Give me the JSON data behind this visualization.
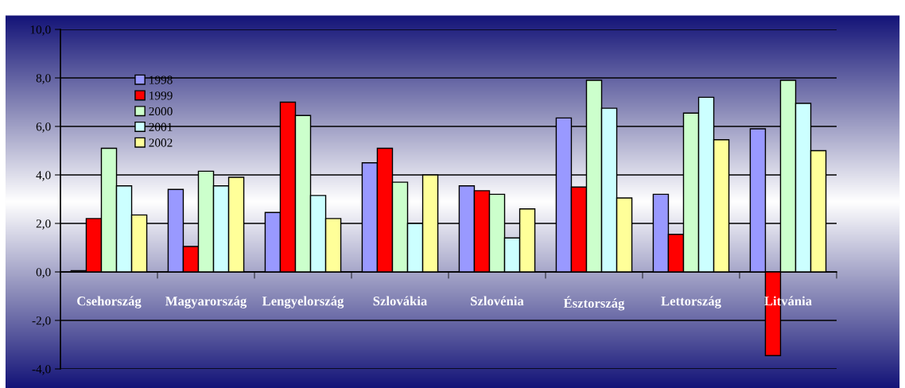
{
  "chart_data": {
    "type": "bar",
    "categories": [
      "Csehország",
      "Magyarország",
      "Lengyelország",
      "Szlovákia",
      "Szlovénia",
      "Észtország",
      "Lettország",
      "Litvánia"
    ],
    "series": [
      {
        "name": "1998",
        "color": "#9999ff",
        "values": [
          0.05,
          3.4,
          2.45,
          4.5,
          3.55,
          6.35,
          3.2,
          5.9
        ]
      },
      {
        "name": "1999",
        "color": "#ff0000",
        "values": [
          2.2,
          1.05,
          7.0,
          5.1,
          3.35,
          3.5,
          1.55,
          -3.45
        ]
      },
      {
        "name": "2000",
        "color": "#ccffcc",
        "values": [
          5.1,
          4.15,
          6.45,
          3.7,
          3.2,
          7.9,
          6.55,
          7.9
        ]
      },
      {
        "name": "2001",
        "color": "#ccffff",
        "values": [
          3.55,
          3.55,
          3.15,
          2.0,
          1.4,
          6.75,
          7.2,
          6.95
        ]
      },
      {
        "name": "2002",
        "color": "#ffff99",
        "values": [
          2.35,
          3.9,
          2.2,
          4.0,
          2.6,
          3.05,
          5.45,
          5.0
        ]
      }
    ],
    "ylim": [
      -4,
      10
    ],
    "yticks": [
      {
        "value": -4,
        "label": "-4,0"
      },
      {
        "value": -2,
        "label": "-2,0"
      },
      {
        "value": 0,
        "label": "0,0"
      },
      {
        "value": 2,
        "label": "2,0"
      },
      {
        "value": 4,
        "label": "4,0"
      },
      {
        "value": 6,
        "label": "6,0"
      },
      {
        "value": 8,
        "label": "8,0"
      },
      {
        "value": 10,
        "label": "10,0"
      }
    ],
    "grid": "y",
    "legend": "top left"
  }
}
